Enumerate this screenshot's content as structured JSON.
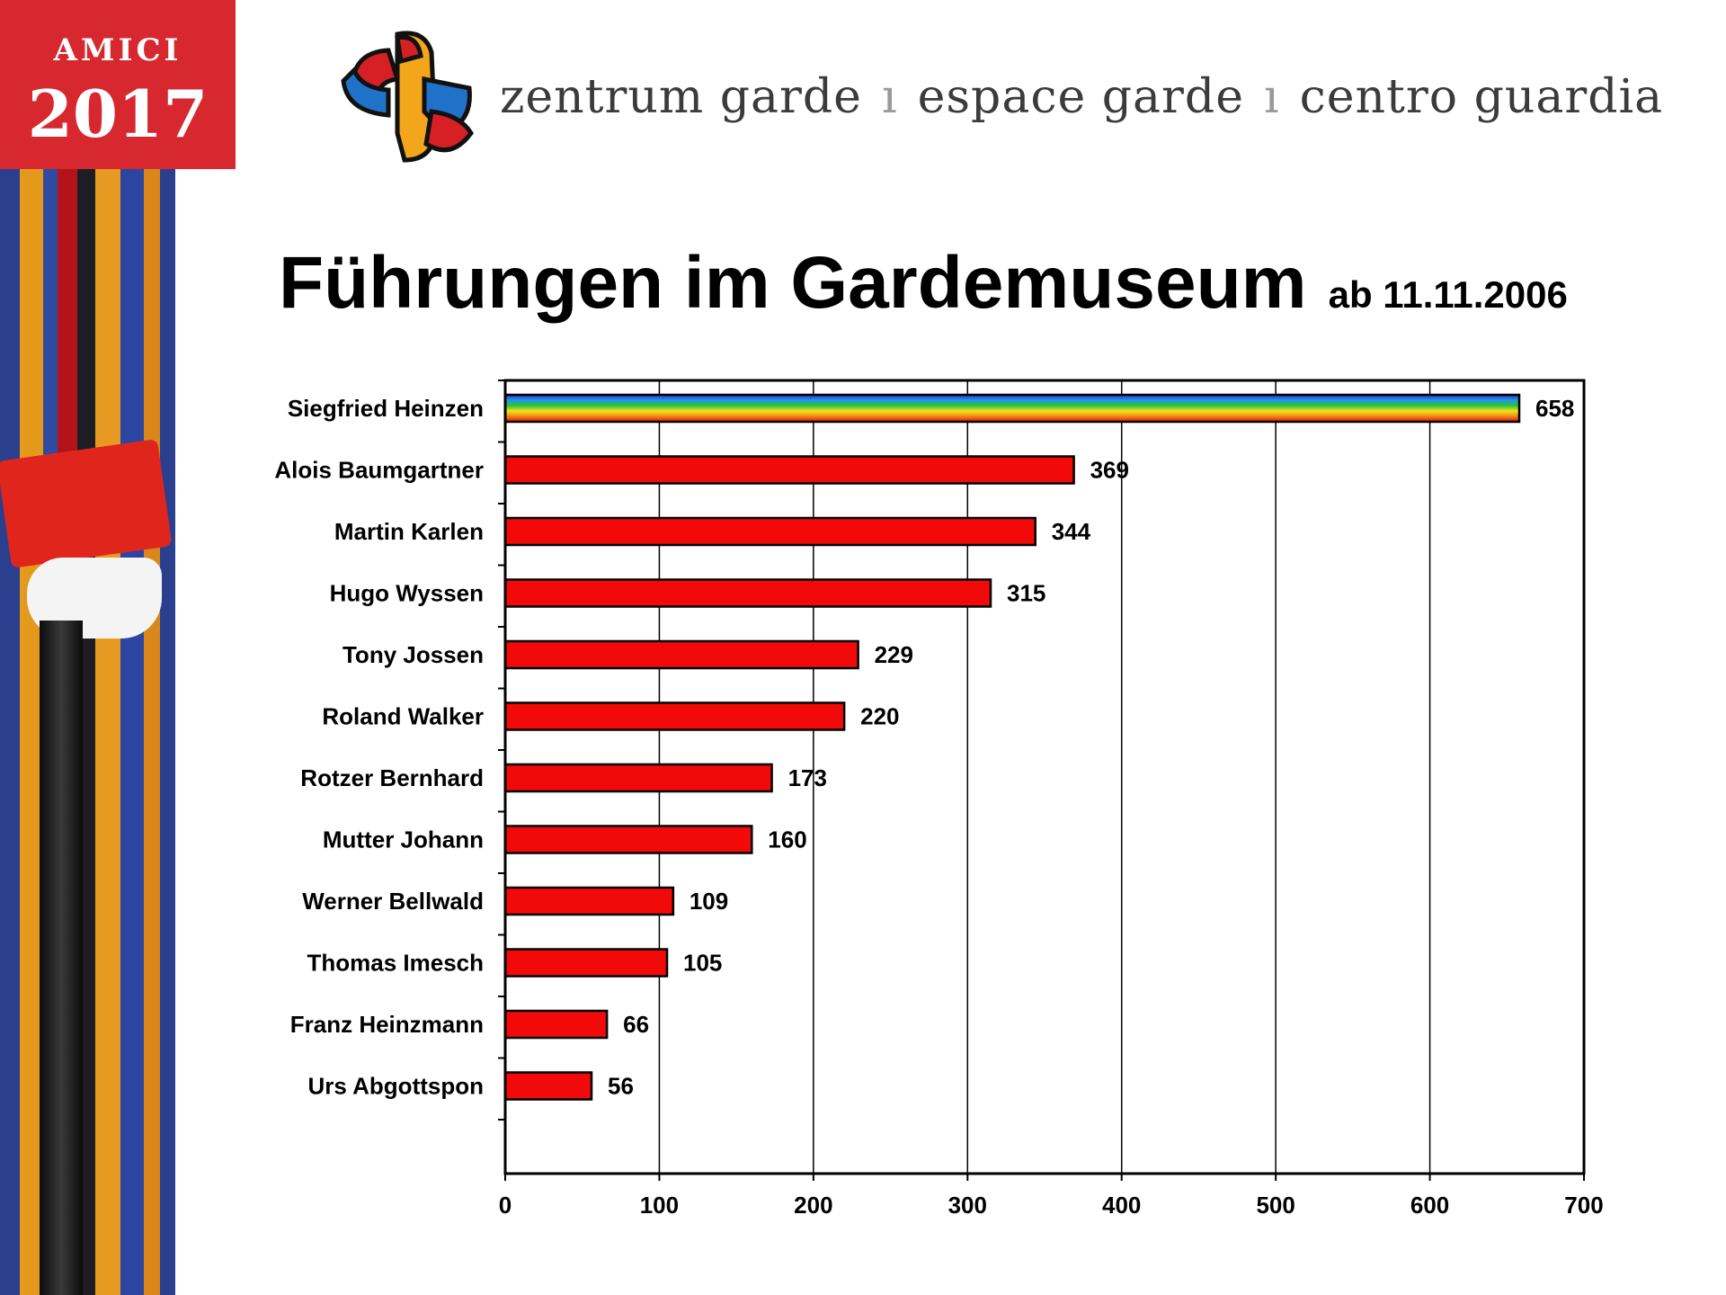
{
  "badge": {
    "word": "AMICI",
    "year": "2017"
  },
  "header": {
    "tagline": [
      "zentrum garde",
      "espace garde",
      "centro guardia"
    ],
    "separator": "ı"
  },
  "colors": {
    "bar": "#f20a0a",
    "bar_outline": "#000000",
    "badge": "#d7282f",
    "top_bar_style": "rainbow"
  },
  "chart_data": {
    "type": "bar",
    "orientation": "horizontal",
    "title": "Führungen im Gardemuseum",
    "subtitle": "ab 11.11.2006",
    "categories": [
      "Siegfried Heinzen",
      "Alois Baumgartner",
      "Martin Karlen",
      "Hugo Wyssen",
      "Tony Jossen",
      "Roland Walker",
      "Rotzer Bernhard",
      "Mutter Johann",
      "Werner Bellwald",
      "Thomas Imesch",
      "Franz Heinzmann",
      "Urs Abgottspon"
    ],
    "values": [
      658,
      369,
      344,
      315,
      229,
      220,
      173,
      160,
      109,
      105,
      66,
      56
    ],
    "xlim": [
      0,
      700
    ],
    "xticks": [
      0,
      100,
      200,
      300,
      400,
      500,
      600,
      700
    ],
    "grid": "vertical",
    "legend": "none",
    "data_labels": true
  }
}
